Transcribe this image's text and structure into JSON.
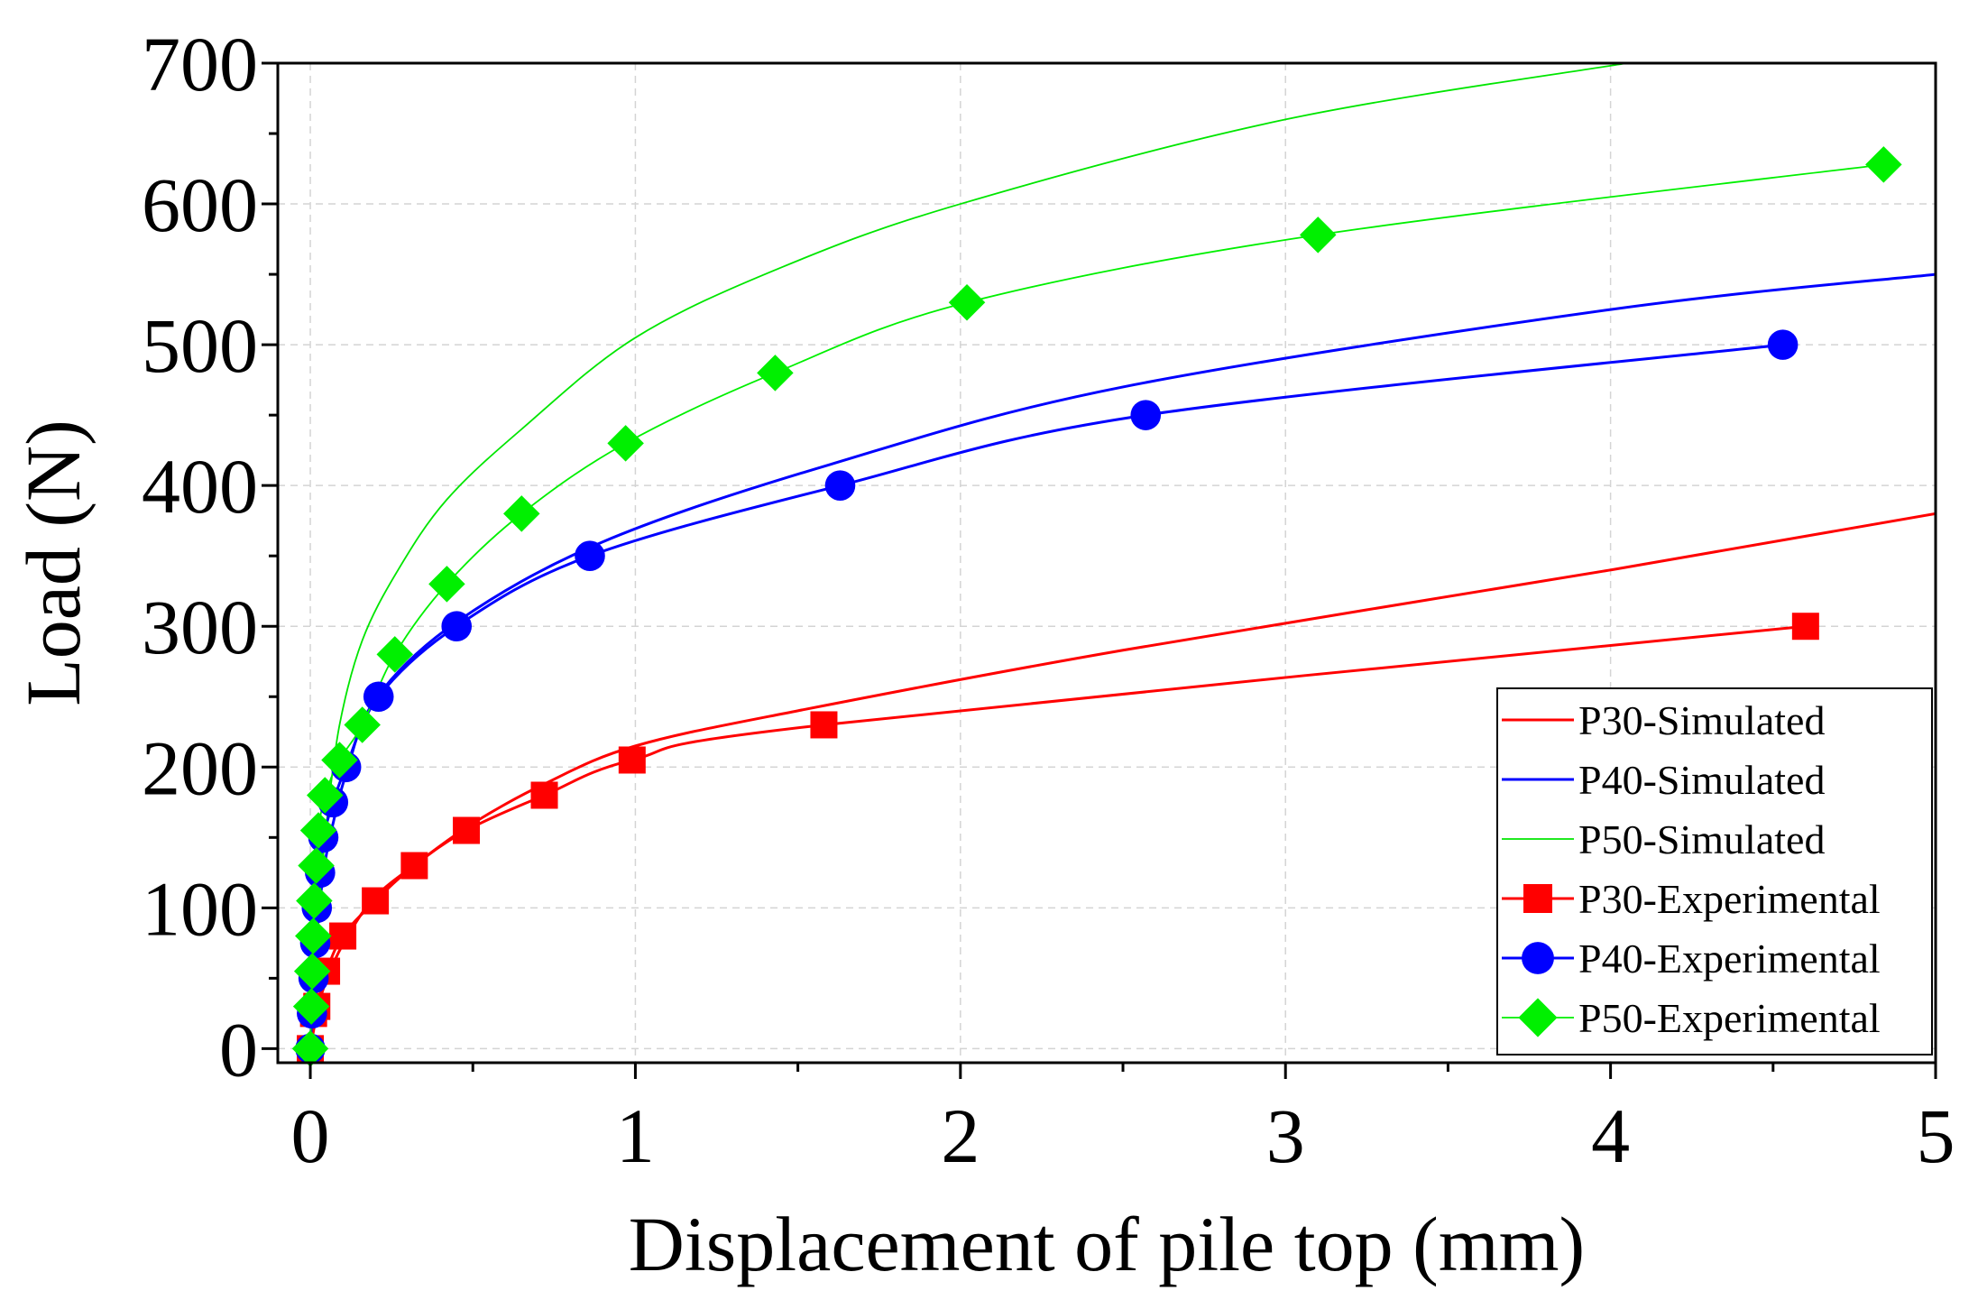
{
  "chart_data": {
    "type": "line",
    "xlabel": "Displacement of pile top (mm)",
    "ylabel": "Load (N)",
    "xlim": [
      -0.1,
      5
    ],
    "ylim": [
      -10,
      700
    ],
    "xticks": [
      0,
      1,
      2,
      3,
      4,
      5
    ],
    "xtick_labels": [
      "0",
      "1",
      "2",
      "3",
      "4",
      "5"
    ],
    "yticks": [
      0,
      100,
      200,
      300,
      400,
      500,
      600,
      700
    ],
    "ytick_labels": [
      "0",
      "100",
      "200",
      "300",
      "400",
      "500",
      "600",
      "700"
    ],
    "grid": true,
    "legend_position": "bottom-right",
    "series": [
      {
        "name": "P30-Simulated",
        "kind": "line",
        "color": "#ff0000",
        "x": [
          0,
          0.03,
          0.07,
          0.12,
          0.2,
          0.33,
          0.5,
          0.72,
          1.0,
          1.5,
          2.5,
          4.0,
          5.0
        ],
        "y": [
          0,
          35,
          60,
          82,
          108,
          132,
          160,
          188,
          215,
          240,
          283,
          340,
          380
        ]
      },
      {
        "name": "P40-Simulated",
        "kind": "line",
        "color": "#0000ff",
        "x": [
          0,
          0.005,
          0.01,
          0.02,
          0.03,
          0.045,
          0.07,
          0.11,
          0.2,
          0.45,
          0.9,
          1.6,
          2.5,
          4.0,
          5.0
        ],
        "y": [
          0,
          28,
          55,
          80,
          105,
          132,
          160,
          195,
          248,
          303,
          360,
          415,
          470,
          525,
          550
        ]
      },
      {
        "name": "P50-Simulated",
        "kind": "line",
        "color": "#00e600",
        "x": [
          0,
          0.005,
          0.01,
          0.02,
          0.03,
          0.05,
          0.09,
          0.16,
          0.27,
          0.42,
          0.65,
          1.0,
          1.45,
          2.0,
          3.0,
          4.05
        ],
        "y": [
          0,
          30,
          55,
          85,
          110,
          160,
          230,
          290,
          340,
          390,
          440,
          505,
          555,
          600,
          660,
          700
        ]
      },
      {
        "name": "P30-Experimental",
        "kind": "marker",
        "marker": "square",
        "color": "#ff0000",
        "x": [
          0,
          0.01,
          0.02,
          0.05,
          0.1,
          0.2,
          0.32,
          0.48,
          0.72,
          0.99,
          1.58,
          4.6
        ],
        "y": [
          0,
          25,
          30,
          55,
          80,
          105,
          130,
          155,
          180,
          205,
          230,
          300
        ]
      },
      {
        "name": "P40-Experimental",
        "kind": "marker",
        "marker": "circle",
        "color": "#0000ff",
        "x": [
          0,
          0.005,
          0.01,
          0.015,
          0.02,
          0.03,
          0.04,
          0.07,
          0.11,
          0.21,
          0.45,
          0.86,
          1.63,
          2.57,
          4.53
        ],
        "y": [
          0,
          25,
          50,
          75,
          100,
          125,
          150,
          175,
          200,
          250,
          300,
          350,
          400,
          450,
          500
        ]
      },
      {
        "name": "P50-Experimental",
        "kind": "marker",
        "marker": "diamond",
        "color": "#00f000",
        "x": [
          0,
          0.003,
          0.006,
          0.009,
          0.012,
          0.018,
          0.025,
          0.045,
          0.09,
          0.16,
          0.26,
          0.42,
          0.65,
          0.97,
          1.43,
          2.02,
          3.1,
          4.84
        ],
        "y": [
          0,
          30,
          55,
          80,
          105,
          130,
          155,
          180,
          205,
          230,
          280,
          330,
          380,
          430,
          480,
          530,
          578,
          628
        ]
      }
    ]
  }
}
